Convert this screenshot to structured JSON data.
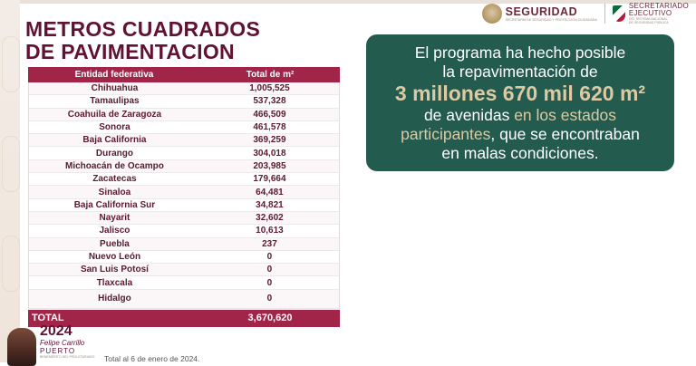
{
  "title": {
    "line1": "METROS CUADRADOS",
    "line2": "DE PAVIMENTACION"
  },
  "table": {
    "headers": {
      "entity": "Entidad federativa",
      "total": "Total de m²"
    },
    "rows": [
      {
        "entity": "Chihuahua",
        "total": "1,005,525"
      },
      {
        "entity": "Tamaulipas",
        "total": "537,328"
      },
      {
        "entity": "Coahuila de Zaragoza",
        "total": "466,509"
      },
      {
        "entity": "Sonora",
        "total": "461,578"
      },
      {
        "entity": "Baja California",
        "total": "369,259"
      },
      {
        "entity": "Durango",
        "total": "304,018"
      },
      {
        "entity": "Michoacán de Ocampo",
        "total": "203,985"
      },
      {
        "entity": "Zacatecas",
        "total": "179,664"
      },
      {
        "entity": "Sinaloa",
        "total": "64,481"
      },
      {
        "entity": "Baja California Sur",
        "total": "34,821"
      },
      {
        "entity": "Nayarit",
        "total": "32,602"
      },
      {
        "entity": "Jalisco",
        "total": "10,613"
      },
      {
        "entity": "Puebla",
        "total": "237"
      },
      {
        "entity": "Nuevo León",
        "total": "0"
      },
      {
        "entity": "San Luis Potosí",
        "total": "0"
      },
      {
        "entity": "Tlaxcala",
        "total": "0"
      },
      {
        "entity": "Hidalgo",
        "total": "0"
      }
    ],
    "footer": {
      "label": "TOTAL",
      "total": "3,670,620"
    }
  },
  "logos": {
    "seguridad": {
      "word": "SEGURIDAD",
      "sub": "SECRETARÍA DE SEGURIDAD Y PROTECCIÓN CIUDADANA"
    },
    "secretariado": {
      "word1": "SECRETARIADO",
      "word2": "EJECUTIVO",
      "sub1": "DEL SISTEMA NACIONAL",
      "sub2": "DE SEGURIDAD PÚBLICA"
    },
    "fcp": {
      "year": "2024",
      "name": "Felipe Carrillo",
      "puerto": "PUERTO",
      "sub": "BENEMÉRITO DEL PROLETARIADO"
    }
  },
  "card": {
    "line1": "El programa ha hecho posible",
    "line2": "la repavimentación de",
    "big": "3 millones 670 mil 620 m²",
    "line4a": "de avenidas ",
    "line4b": "en los estados",
    "line5a": "participantes",
    "line5b": ", que se encontraban",
    "line6": "en malas condiciones."
  },
  "footnote": "Total al 6 de enero de 2024."
}
